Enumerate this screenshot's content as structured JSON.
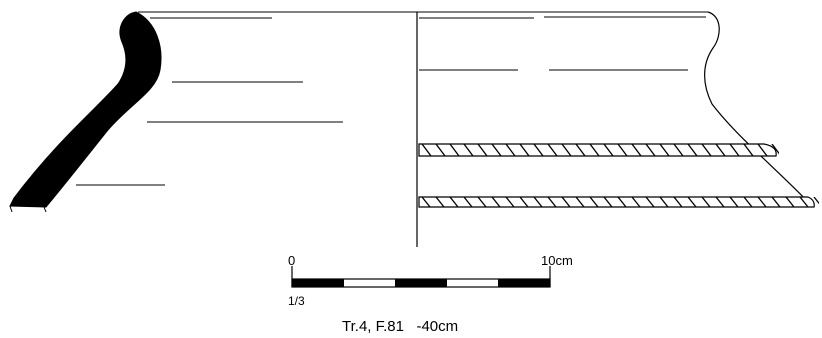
{
  "scale_bar": {
    "start_label": "0",
    "end_label": "10cm",
    "ratio_label": "1/3"
  },
  "caption": "Tr.4, F.81   -40cm"
}
